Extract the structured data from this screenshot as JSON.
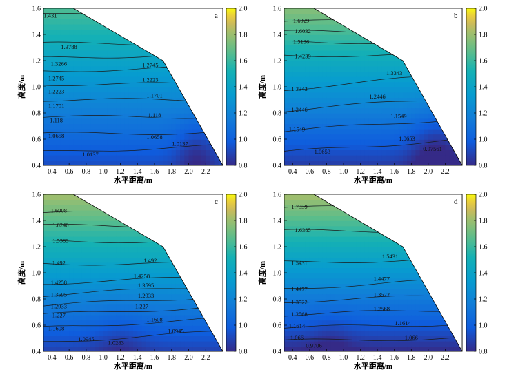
{
  "chart_data": [
    {
      "type": "contour",
      "panel_label": "a",
      "xlabel": "水平距离/m",
      "ylabel": "高度/m",
      "xlim": [
        0.3,
        2.4
      ],
      "ylim": [
        0.4,
        1.6
      ],
      "xticks": [
        "0.4",
        "0.6",
        "0.8",
        "1.0",
        "1.2",
        "1.4",
        "1.6",
        "1.8",
        "2.0",
        "2.2"
      ],
      "yticks": [
        "0.4",
        "0.6",
        "0.8",
        "1.0",
        "1.2",
        "1.4",
        "1.6"
      ],
      "colorbar": {
        "min": 0.8,
        "max": 2.0,
        "ticks": [
          "0.8",
          "1.0",
          "1.2",
          "1.4",
          "1.6",
          "1.8",
          "2.0"
        ]
      },
      "boundary": [
        [
          0.3,
          0.4
        ],
        [
          2.4,
          0.4
        ],
        [
          1.7,
          1.2
        ],
        [
          0.65,
          1.6
        ],
        [
          0.3,
          1.6
        ]
      ],
      "field": {
        "base": 0.92,
        "slope": 0.6,
        "dip_cx": 2.1,
        "dip_cy": 0.5,
        "dip_amp": 0.15,
        "dip_r": 0.25
      },
      "contour_levels": [
        {
          "label": "1.431",
          "y0": 1.56,
          "y1": 1.5
        },
        {
          "label": "1.3788",
          "y0": 1.33,
          "y1": 1.33
        },
        {
          "label": "1.3266",
          "y0": 1.22,
          "y1": 1.25
        },
        {
          "label": "1.2745",
          "y0": 1.12,
          "y1": 1.15
        },
        {
          "label": "1.2223",
          "y0": 1.02,
          "y1": 1.02
        },
        {
          "label": "1.1701",
          "y0": 0.9,
          "y1": 0.9
        },
        {
          "label": "1.118",
          "y0": 0.77,
          "y1": 0.77
        },
        {
          "label": "1.0658",
          "y0": 0.64,
          "y1": 0.65
        },
        {
          "label": "1.0137",
          "y0": 0.5,
          "y1": 0.55
        }
      ],
      "contour_labels": [
        {
          "text": "1.431",
          "x": 0.38,
          "y": 1.54
        },
        {
          "text": "1.3788",
          "x": 0.6,
          "y": 1.3
        },
        {
          "text": "1.3266",
          "x": 0.48,
          "y": 1.17
        },
        {
          "text": "1.2745",
          "x": 0.45,
          "y": 1.06
        },
        {
          "text": "1.2223",
          "x": 0.45,
          "y": 0.96
        },
        {
          "text": "1.1701",
          "x": 0.45,
          "y": 0.85
        },
        {
          "text": "1.118",
          "x": 0.45,
          "y": 0.74
        },
        {
          "text": "1.0658",
          "x": 0.45,
          "y": 0.62
        },
        {
          "text": "1.0137",
          "x": 0.85,
          "y": 0.48
        },
        {
          "text": "1.2745",
          "x": 1.55,
          "y": 1.16
        },
        {
          "text": "1.2223",
          "x": 1.55,
          "y": 1.05
        },
        {
          "text": "1.1701",
          "x": 1.6,
          "y": 0.93
        },
        {
          "text": "1.118",
          "x": 1.6,
          "y": 0.78
        },
        {
          "text": "1.0658",
          "x": 1.6,
          "y": 0.61
        },
        {
          "text": "1.0137",
          "x": 1.9,
          "y": 0.56
        }
      ]
    },
    {
      "type": "contour",
      "panel_label": "b",
      "xlabel": "水平距离/m",
      "ylabel": "高度/m",
      "xlim": [
        0.3,
        2.4
      ],
      "ylim": [
        0.4,
        1.6
      ],
      "xticks": [
        "0.4",
        "0.6",
        "0.8",
        "1.0",
        "1.2",
        "1.4",
        "1.6",
        "1.8",
        "2.0",
        "2.2"
      ],
      "yticks": [
        "0.4",
        "0.6",
        "0.8",
        "1.0",
        "1.2",
        "1.4",
        "1.6"
      ],
      "colorbar": {
        "min": 0.8,
        "max": 2.0,
        "ticks": [
          "0.8",
          "1.0",
          "1.2",
          "1.4",
          "1.6",
          "1.8",
          "2.0"
        ]
      },
      "boundary": [
        [
          0.3,
          0.4
        ],
        [
          2.4,
          0.4
        ],
        [
          1.7,
          1.2
        ],
        [
          0.65,
          1.6
        ],
        [
          0.3,
          1.6
        ]
      ],
      "field": {
        "base": 0.86,
        "slope": 0.75,
        "dip_cx": 2.1,
        "dip_cy": 0.5,
        "dip_amp": 0.18,
        "dip_r": 0.3
      },
      "contour_levels": [
        {
          "label": "1.6929",
          "y0": 1.5,
          "y1": 1.5
        },
        {
          "label": "1.6032",
          "y0": 1.42,
          "y1": 1.42
        },
        {
          "label": "1.5136",
          "y0": 1.34,
          "y1": 1.34
        },
        {
          "label": "1.4239",
          "y0": 1.24,
          "y1": 1.24
        },
        {
          "label": "1.3343",
          "y0": 0.98,
          "y1": 1.1
        },
        {
          "label": "1.2446",
          "y0": 0.82,
          "y1": 0.92
        },
        {
          "label": "1.1549",
          "y0": 0.66,
          "y1": 0.76
        },
        {
          "label": "1.0653",
          "y0": 0.5,
          "y1": 0.6
        }
      ],
      "contour_labels": [
        {
          "text": "1.6929",
          "x": 0.5,
          "y": 1.5
        },
        {
          "text": "1.6032",
          "x": 0.52,
          "y": 1.42
        },
        {
          "text": "1.5136",
          "x": 0.5,
          "y": 1.34
        },
        {
          "text": "1.4239",
          "x": 0.52,
          "y": 1.23
        },
        {
          "text": "1.3343",
          "x": 1.6,
          "y": 1.1
        },
        {
          "text": "1.3343",
          "x": 0.48,
          "y": 0.98
        },
        {
          "text": "1.2446",
          "x": 1.4,
          "y": 0.92
        },
        {
          "text": "1.2446",
          "x": 0.48,
          "y": 0.82
        },
        {
          "text": "1.1549",
          "x": 1.65,
          "y": 0.77
        },
        {
          "text": "1.1549",
          "x": 0.45,
          "y": 0.67
        },
        {
          "text": "1.0653",
          "x": 0.75,
          "y": 0.5
        },
        {
          "text": "1.0653",
          "x": 1.75,
          "y": 0.6
        },
        {
          "text": "0.97561",
          "x": 2.05,
          "y": 0.52
        }
      ]
    },
    {
      "type": "contour",
      "panel_label": "c",
      "xlabel": "水平距离/m",
      "ylabel": "高度/m",
      "xlim": [
        0.3,
        2.4
      ],
      "ylim": [
        0.4,
        1.6
      ],
      "xticks": [
        "0.4",
        "0.6",
        "0.8",
        "1.0",
        "1.2",
        "1.4",
        "1.6",
        "1.8",
        "2.0",
        "2.2"
      ],
      "yticks": [
        "0.4",
        "0.6",
        "0.8",
        "1.0",
        "1.2",
        "1.4",
        "1.6"
      ],
      "colorbar": {
        "min": 0.8,
        "max": 2.0,
        "ticks": [
          "0.8",
          "1.0",
          "1.2",
          "1.4",
          "1.6",
          "1.8",
          "2.0"
        ]
      },
      "boundary": [
        [
          0.3,
          0.4
        ],
        [
          2.4,
          0.4
        ],
        [
          1.7,
          1.2
        ],
        [
          0.65,
          1.6
        ],
        [
          0.3,
          1.6
        ]
      ],
      "field": {
        "base": 0.88,
        "slope": 0.78,
        "dip_cx": 1.2,
        "dip_cy": 0.42,
        "dip_amp": 0.08,
        "dip_r": 0.3
      },
      "contour_levels": [
        {
          "label": "1.6908",
          "y0": 1.46,
          "y1": 1.46
        },
        {
          "label": "1.6246",
          "y0": 1.36,
          "y1": 1.36
        },
        {
          "label": "1.5583",
          "y0": 1.24,
          "y1": 1.24
        },
        {
          "label": "1.492",
          "y0": 1.07,
          "y1": 1.07
        },
        {
          "label": "1.4258",
          "y0": 0.92,
          "y1": 0.97
        },
        {
          "label": "1.3595",
          "y0": 0.83,
          "y1": 0.9
        },
        {
          "label": "1.2933",
          "y0": 0.75,
          "y1": 0.82
        },
        {
          "label": "1.227",
          "y0": 0.68,
          "y1": 0.74
        },
        {
          "label": "1.1608",
          "y0": 0.58,
          "y1": 0.65
        },
        {
          "label": "1.0945",
          "y0": 0.47,
          "y1": 0.55
        }
      ],
      "contour_labels": [
        {
          "text": "1.6908",
          "x": 0.48,
          "y": 1.47
        },
        {
          "text": "1.6246",
          "x": 0.5,
          "y": 1.36
        },
        {
          "text": "1.5583",
          "x": 0.5,
          "y": 1.24
        },
        {
          "text": "1.492",
          "x": 0.48,
          "y": 1.07
        },
        {
          "text": "1.492",
          "x": 1.55,
          "y": 1.09
        },
        {
          "text": "1.4258",
          "x": 0.48,
          "y": 0.92
        },
        {
          "text": "1.4258",
          "x": 1.45,
          "y": 0.97
        },
        {
          "text": "1.3595",
          "x": 0.48,
          "y": 0.83
        },
        {
          "text": "1.3595",
          "x": 1.5,
          "y": 0.9
        },
        {
          "text": "1.2933",
          "x": 0.48,
          "y": 0.74
        },
        {
          "text": "1.2933",
          "x": 1.5,
          "y": 0.82
        },
        {
          "text": "1.227",
          "x": 0.48,
          "y": 0.67
        },
        {
          "text": "1.227",
          "x": 1.45,
          "y": 0.74
        },
        {
          "text": "1.1608",
          "x": 0.45,
          "y": 0.57
        },
        {
          "text": "1.1608",
          "x": 1.6,
          "y": 0.64
        },
        {
          "text": "1.0945",
          "x": 0.8,
          "y": 0.49
        },
        {
          "text": "1.0945",
          "x": 1.85,
          "y": 0.55
        },
        {
          "text": "1.0283",
          "x": 1.15,
          "y": 0.46
        }
      ]
    },
    {
      "type": "contour",
      "panel_label": "d",
      "xlabel": "水平距离/m",
      "ylabel": "高度/m",
      "xlim": [
        0.3,
        2.4
      ],
      "ylim": [
        0.4,
        1.6
      ],
      "xticks": [
        "0.4",
        "0.6",
        "0.8",
        "1.0",
        "1.2",
        "1.4",
        "1.6",
        "1.8",
        "2.0",
        "2.2"
      ],
      "yticks": [
        "0.4",
        "0.6",
        "0.8",
        "1.0",
        "1.2",
        "1.4",
        "1.6"
      ],
      "colorbar": {
        "min": 0.8,
        "max": 2.0,
        "ticks": [
          "0.8",
          "1.0",
          "1.2",
          "1.4",
          "1.6",
          "1.8",
          "2.0"
        ]
      },
      "boundary": [
        [
          0.3,
          0.4
        ],
        [
          2.4,
          0.4
        ],
        [
          1.7,
          1.2
        ],
        [
          0.65,
          1.6
        ],
        [
          0.3,
          1.6
        ]
      ],
      "field": {
        "base": 0.8,
        "slope": 0.85,
        "dip_cx": 0.85,
        "dip_cy": 0.42,
        "dip_amp": 0.07,
        "dip_r": 0.25
      },
      "contour_levels": [
        {
          "label": "1.7339",
          "y0": 1.5,
          "y1": 1.5
        },
        {
          "label": "1.6385",
          "y0": 1.32,
          "y1": 1.32
        },
        {
          "label": "1.5431",
          "y0": 1.08,
          "y1": 1.1
        },
        {
          "label": "1.4477",
          "y0": 0.88,
          "y1": 0.95
        },
        {
          "label": "1.3522",
          "y0": 0.78,
          "y1": 0.83
        },
        {
          "label": "1.2568",
          "y0": 0.68,
          "y1": 0.72
        },
        {
          "label": "1.1614",
          "y0": 0.58,
          "y1": 0.61
        },
        {
          "label": "1.066",
          "y0": 0.48,
          "y1": 0.5
        }
      ],
      "contour_labels": [
        {
          "text": "1.7339",
          "x": 0.48,
          "y": 1.5
        },
        {
          "text": "1.6385",
          "x": 0.52,
          "y": 1.32
        },
        {
          "text": "1.5431",
          "x": 0.48,
          "y": 1.07
        },
        {
          "text": "1.5431",
          "x": 1.55,
          "y": 1.12
        },
        {
          "text": "1.4477",
          "x": 0.48,
          "y": 0.87
        },
        {
          "text": "1.4477",
          "x": 1.45,
          "y": 0.95
        },
        {
          "text": "1.3522",
          "x": 0.48,
          "y": 0.77
        },
        {
          "text": "1.3522",
          "x": 1.45,
          "y": 0.83
        },
        {
          "text": "1.2568",
          "x": 0.48,
          "y": 0.68
        },
        {
          "text": "1.2568",
          "x": 1.45,
          "y": 0.72
        },
        {
          "text": "1.1614",
          "x": 0.45,
          "y": 0.59
        },
        {
          "text": "1.1614",
          "x": 1.7,
          "y": 0.61
        },
        {
          "text": "1.066",
          "x": 0.45,
          "y": 0.5
        },
        {
          "text": "1.066",
          "x": 1.8,
          "y": 0.5
        },
        {
          "text": "0.9706",
          "x": 0.65,
          "y": 0.44
        }
      ]
    }
  ]
}
